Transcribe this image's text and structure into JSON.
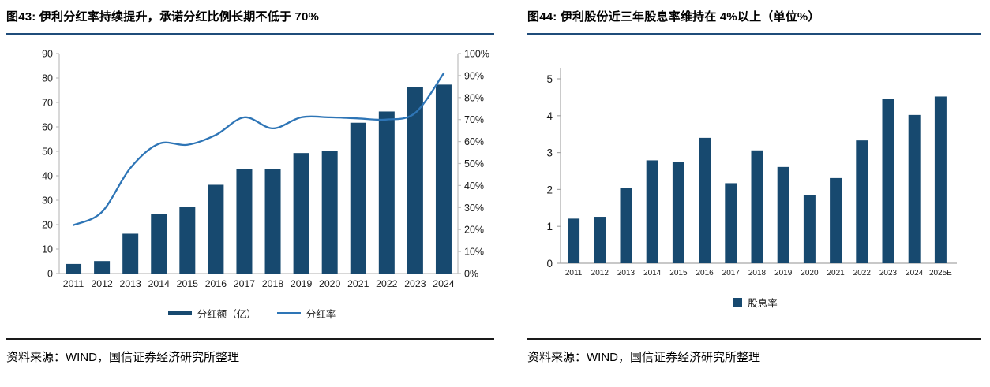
{
  "colors": {
    "bar": "#17496F",
    "line": "#2E75B6",
    "title_rule": "#1F4C7A",
    "axis_left_chart": "#BFBFBF",
    "axis_right_chart": "#A6A6A6",
    "axis_text": "#1a1a1a"
  },
  "left_panel": {
    "title": "图43: 伊利分红率持续提升，承诺分红比例长期不低于 70%",
    "legend": {
      "bar_label": "分红额（亿）",
      "line_label": "分红率"
    },
    "source": "资料来源：WIND，国信证券经济研究所整理"
  },
  "right_panel": {
    "title": "图44: 伊利股份近三年股息率维持在 4%以上（单位%）",
    "legend": {
      "bar_label": "股息率"
    },
    "source": "资料来源：WIND，国信证券经济研究所整理"
  },
  "chart_data": [
    {
      "type": "bar",
      "subtype": "bar+line-dual-axis",
      "title": "图43: 伊利分红率持续提升，承诺分红比例长期不低于 70%",
      "categories": [
        "2011",
        "2012",
        "2013",
        "2014",
        "2015",
        "2016",
        "2017",
        "2018",
        "2019",
        "2020",
        "2021",
        "2022",
        "2023",
        "2024"
      ],
      "series": [
        {
          "name": "分红额（亿）",
          "kind": "bar",
          "axis": "left",
          "values": [
            3.9,
            5.1,
            16.3,
            24.4,
            27.2,
            36.3,
            42.6,
            42.6,
            49.3,
            50.3,
            61.7,
            66.3,
            76.4,
            77.3
          ]
        },
        {
          "name": "分红率",
          "kind": "line",
          "axis": "right",
          "values": [
            22,
            28,
            48,
            59,
            58.5,
            63,
            71,
            66,
            71,
            71,
            70.5,
            70,
            73,
            91
          ]
        }
      ],
      "y_left": {
        "min": 0,
        "max": 90,
        "step": 10,
        "ticks": [
          "0",
          "10",
          "20",
          "30",
          "40",
          "50",
          "60",
          "70",
          "80",
          "90"
        ]
      },
      "y_right": {
        "min": 0,
        "max": 100,
        "step": 10,
        "format": "percent",
        "ticks": [
          "0%",
          "10%",
          "20%",
          "30%",
          "40%",
          "50%",
          "60%",
          "70%",
          "80%",
          "90%",
          "100%"
        ]
      },
      "grid": false,
      "legend_position": "bottom"
    },
    {
      "type": "bar",
      "title": "图44: 伊利股份近三年股息率维持在 4%以上（单位%）",
      "categories": [
        "2011",
        "2012",
        "2013",
        "2014",
        "2015",
        "2016",
        "2017",
        "2018",
        "2019",
        "2020",
        "2021",
        "2022",
        "2023",
        "2024",
        "2025E"
      ],
      "series": [
        {
          "name": "股息率",
          "kind": "bar",
          "values": [
            1.21,
            1.26,
            2.04,
            2.79,
            2.74,
            3.4,
            2.17,
            3.06,
            2.61,
            1.84,
            2.31,
            3.33,
            4.46,
            4.02,
            4.52
          ]
        }
      ],
      "y": {
        "min": 0,
        "max": 5,
        "step": 1,
        "ticks": [
          "0",
          "1",
          "2",
          "3",
          "4",
          "5"
        ]
      },
      "grid": false,
      "legend_position": "bottom"
    }
  ]
}
